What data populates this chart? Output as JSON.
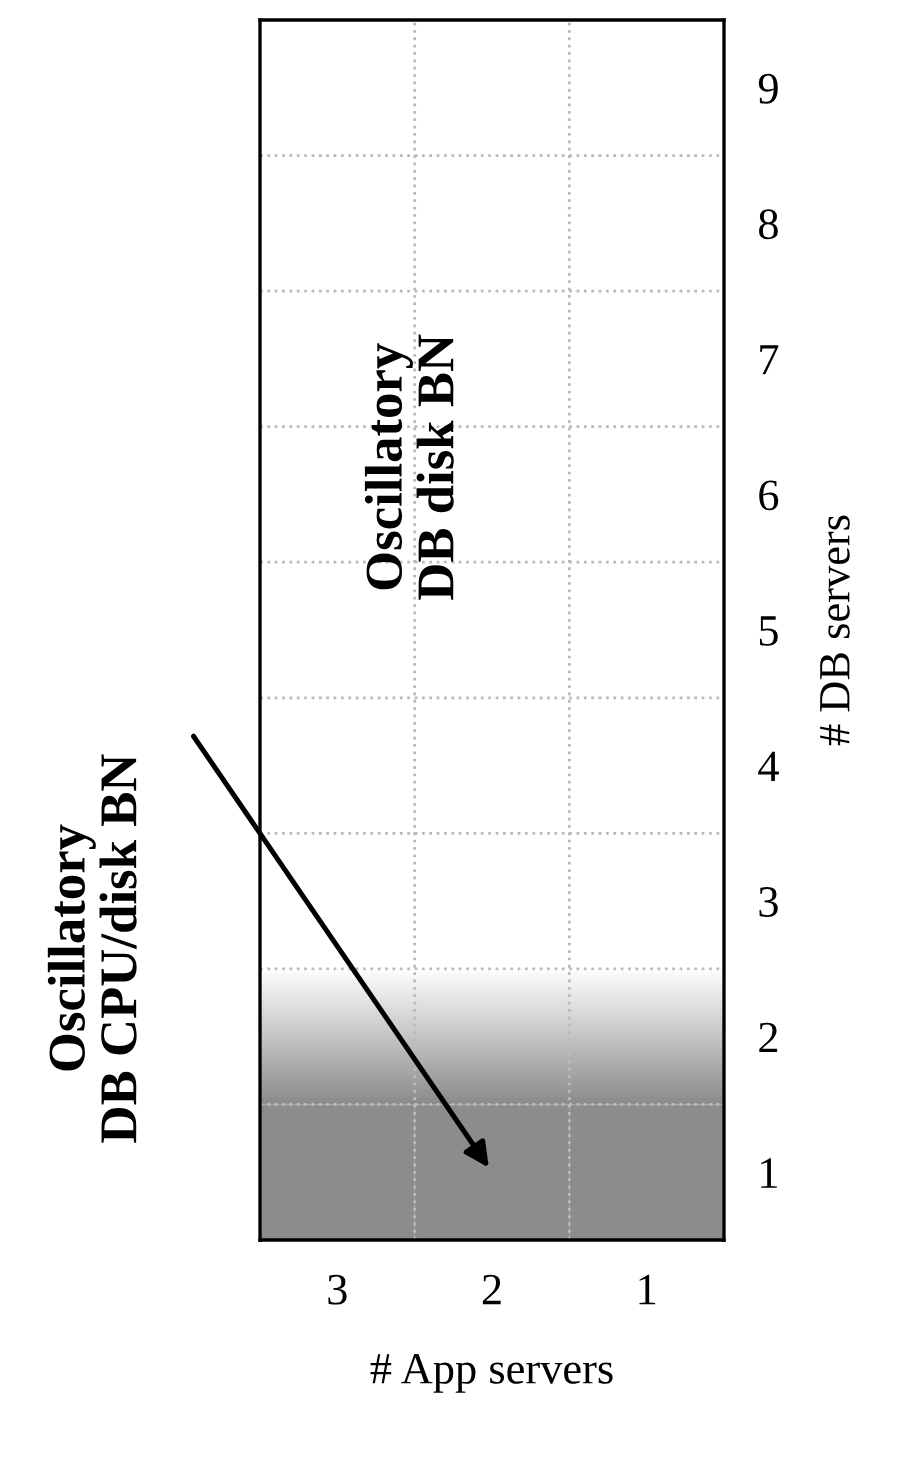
{
  "chart_data": {
    "type": "bar",
    "xlabel": "# App servers",
    "ylabel": "# DB servers",
    "categories": [
      "3",
      "2",
      "1"
    ],
    "values": [
      1,
      1,
      1
    ],
    "base": [
      0.5,
      0.5,
      0.5
    ],
    "color": "#8c8c8c",
    "ylim": [
      0.5,
      9.5
    ],
    "yticks": [
      1,
      2,
      3,
      4,
      5,
      6,
      7,
      8,
      9
    ],
    "grid": true,
    "bands": [
      {
        "axis": "y",
        "from": 1.5,
        "to": 2.5,
        "color": [
          "#8c8c8c",
          "#ffffff"
        ]
      }
    ],
    "annotations": [
      "Oscillatory\nDB disk BN",
      "Oscillatory\nDB CPU/disk BN"
    ]
  }
}
